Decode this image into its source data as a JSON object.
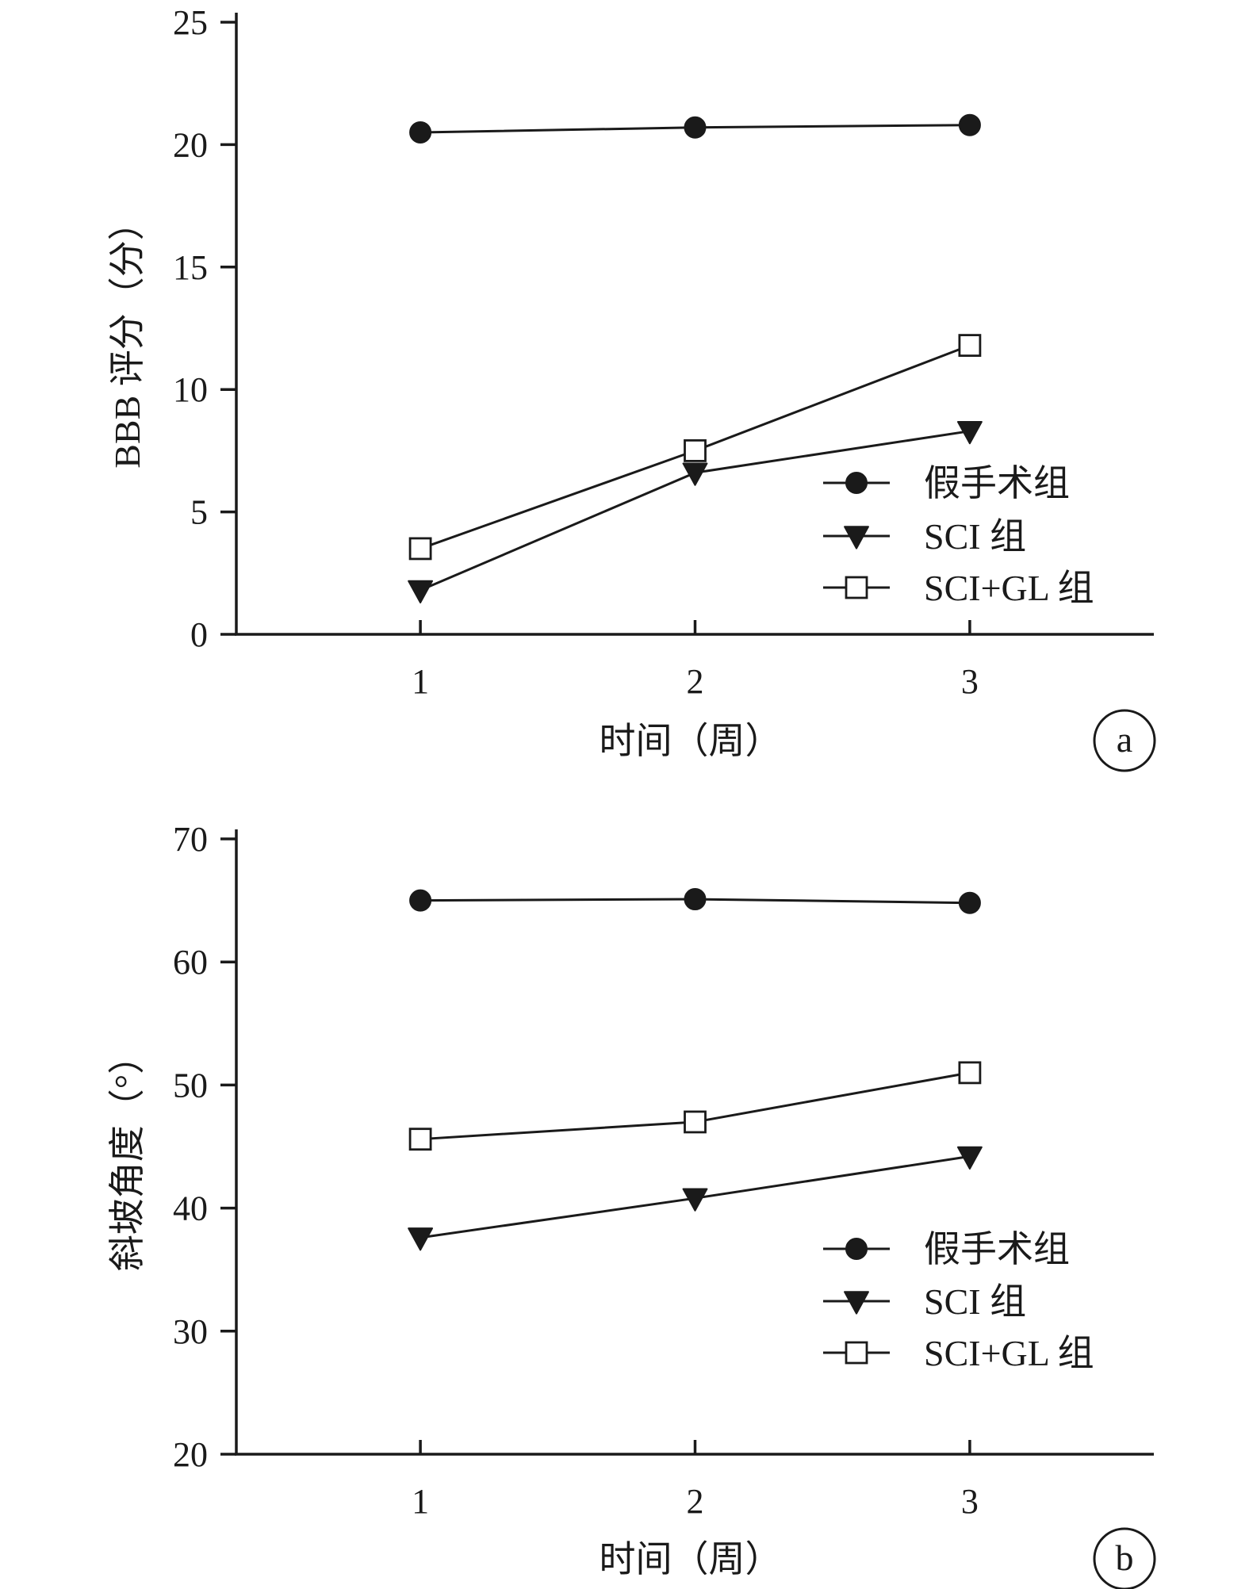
{
  "chart_data": [
    {
      "type": "line",
      "panel_label": "a",
      "xlabel": "时间（周）",
      "ylabel": "BBB 评分（分）",
      "x": [
        1,
        2,
        3
      ],
      "xticks": [
        "1",
        "2",
        "3"
      ],
      "xlim": [
        0.33,
        3.67
      ],
      "ylim": [
        0,
        25
      ],
      "yticks": [
        0,
        5,
        10,
        15,
        20,
        25
      ],
      "grid": false,
      "legend_position": "bottom-right",
      "series": [
        {
          "name": "假手术组",
          "marker": "filled-circle",
          "values": [
            20.5,
            20.7,
            20.8
          ]
        },
        {
          "name": "SCI 组",
          "marker": "filled-triangle-down",
          "values": [
            1.8,
            6.6,
            8.3
          ]
        },
        {
          "name": "SCI+GL 组",
          "marker": "open-square",
          "values": [
            3.5,
            7.5,
            11.8
          ]
        }
      ]
    },
    {
      "type": "line",
      "panel_label": "b",
      "xlabel": "时间（周）",
      "ylabel": "斜坡角度（°）",
      "x": [
        1,
        2,
        3
      ],
      "xticks": [
        "1",
        "2",
        "3"
      ],
      "xlim": [
        0.33,
        3.67
      ],
      "ylim": [
        20,
        70
      ],
      "yticks": [
        20,
        30,
        40,
        50,
        60,
        70
      ],
      "grid": false,
      "legend_position": "bottom-right",
      "series": [
        {
          "name": "假手术组",
          "marker": "filled-circle",
          "values": [
            65.0,
            65.1,
            64.8
          ]
        },
        {
          "name": "SCI 组",
          "marker": "filled-triangle-down",
          "values": [
            37.6,
            40.8,
            44.2
          ]
        },
        {
          "name": "SCI+GL 组",
          "marker": "open-square",
          "values": [
            45.6,
            47.0,
            51.0
          ]
        }
      ]
    }
  ]
}
